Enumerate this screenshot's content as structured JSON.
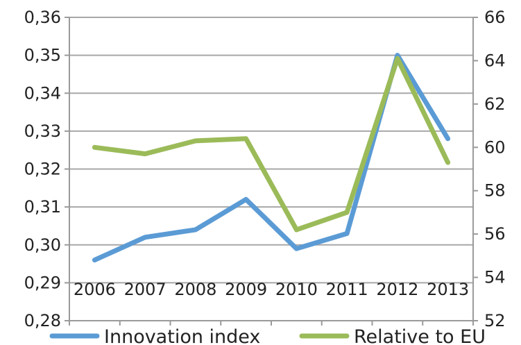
{
  "chart_data": {
    "type": "line",
    "categories": [
      "2006",
      "2007",
      "2008",
      "2009",
      "2010",
      "2011",
      "2012",
      "2013"
    ],
    "series": [
      {
        "name": "Innovation index",
        "axis": "left",
        "color": "#5b9bd5",
        "values": [
          0.296,
          0.302,
          0.304,
          0.312,
          0.299,
          0.303,
          0.35,
          0.328
        ]
      },
      {
        "name": "Relative to EU",
        "axis": "right",
        "color": "#9bbb59",
        "values": [
          60.0,
          59.7,
          60.3,
          60.4,
          56.2,
          57.0,
          64.1,
          59.3
        ]
      }
    ],
    "y_left": {
      "ylim": [
        0.28,
        0.36
      ],
      "ticks": [
        "0,28",
        "0,29",
        "0,30",
        "0,31",
        "0,32",
        "0,33",
        "0,34",
        "0,35",
        "0,36"
      ]
    },
    "y_right": {
      "ylim": [
        52,
        66
      ],
      "ticks": [
        "52",
        "54",
        "56",
        "58",
        "60",
        "62",
        "64",
        "66"
      ]
    },
    "grid": true,
    "legend_position": "bottom",
    "title": "",
    "xlabel": "",
    "ylabel": ""
  }
}
